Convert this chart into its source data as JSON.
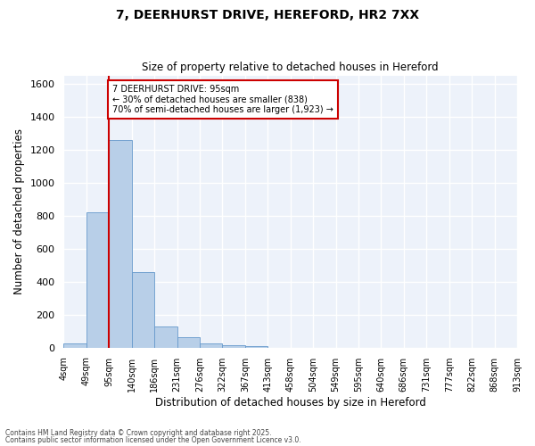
{
  "title1": "7, DEERHURST DRIVE, HEREFORD, HR2 7XX",
  "title2": "Size of property relative to detached houses in Hereford",
  "xlabel": "Distribution of detached houses by size in Hereford",
  "ylabel": "Number of detached properties",
  "bar_heights": [
    25,
    820,
    1260,
    460,
    130,
    62,
    28,
    15,
    12,
    0,
    0,
    0,
    0,
    0,
    0,
    0,
    0,
    0,
    0,
    0
  ],
  "bar_color": "#b8cfe8",
  "bar_edge_color": "#6699cc",
  "vline_bin": 2,
  "vline_color": "#cc0000",
  "annotation_text": "7 DEERHURST DRIVE: 95sqm\n← 30% of detached houses are smaller (838)\n70% of semi-detached houses are larger (1,923) →",
  "annotation_box_color": "#ffffff",
  "annotation_box_edge": "#cc0000",
  "ylim": [
    0,
    1650
  ],
  "yticks": [
    0,
    200,
    400,
    600,
    800,
    1000,
    1200,
    1400,
    1600
  ],
  "tick_labels": [
    "4sqm",
    "49sqm",
    "95sqm",
    "140sqm",
    "186sqm",
    "231sqm",
    "276sqm",
    "322sqm",
    "367sqm",
    "413sqm",
    "458sqm",
    "504sqm",
    "549sqm",
    "595sqm",
    "640sqm",
    "686sqm",
    "731sqm",
    "777sqm",
    "822sqm",
    "868sqm",
    "913sqm"
  ],
  "footer1": "Contains HM Land Registry data © Crown copyright and database right 2025.",
  "footer2": "Contains public sector information licensed under the Open Government Licence v3.0.",
  "bg_color": "#edf2fa",
  "grid_color": "#ffffff",
  "fig_bg": "#ffffff",
  "n_bins": 20
}
